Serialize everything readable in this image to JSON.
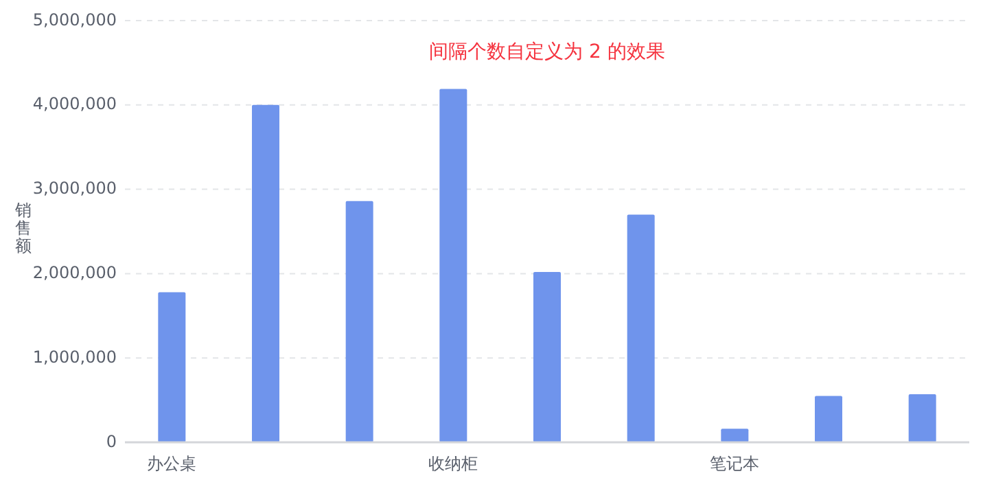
{
  "chart_data": {
    "type": "bar",
    "title": "间隔个数自定义为 2 的效果",
    "ylabel": "销售额",
    "categories": [
      "办公桌",
      null,
      null,
      "收纳柜",
      null,
      null,
      "笔记本",
      null,
      null
    ],
    "series": [
      {
        "color": "#6f94ec",
        "values": [
          1780000,
          4000000,
          2860000,
          4190000,
          2020000,
          2700000,
          160000,
          550000,
          570000
        ]
      }
    ],
    "ylim": [
      0,
      5000000
    ],
    "yticks": [
      {
        "value": 0,
        "label": "0"
      },
      {
        "value": 1000000,
        "label": "1,000,000"
      },
      {
        "value": 2000000,
        "label": "2,000,000"
      },
      {
        "value": 3000000,
        "label": "3,000,000"
      },
      {
        "value": 4000000,
        "label": "4,000,000"
      },
      {
        "value": 5000000,
        "label": "5,000,000"
      }
    ],
    "grid": "y"
  }
}
